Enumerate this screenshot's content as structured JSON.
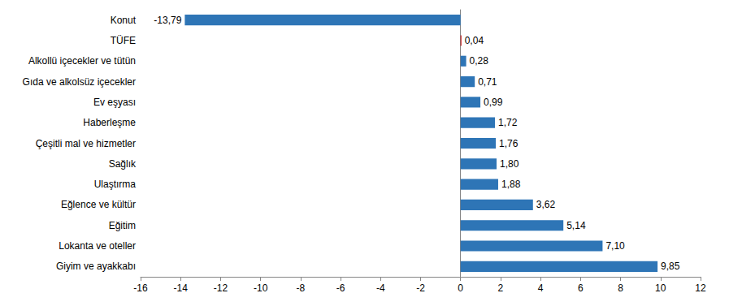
{
  "chart_data": {
    "type": "bar",
    "orientation": "horizontal",
    "categories": [
      "Konut",
      "TÜFE",
      "Alkollü içecekler ve tütün",
      "Gıda ve alkolsüz içecekler",
      "Ev eşyası",
      "Haberleşme",
      "Çeşitli mal ve hizmetler",
      "Sağlık",
      "Ulaştırma",
      "Eğlence ve kültür",
      "Eğitim",
      "Lokanta ve oteller",
      "Giyim ve ayakkabı"
    ],
    "values": [
      -13.79,
      0.04,
      0.28,
      0.71,
      0.99,
      1.72,
      1.76,
      1.8,
      1.88,
      3.62,
      5.14,
      7.1,
      9.85
    ],
    "value_labels": [
      "-13,79",
      "0,04",
      "0,28",
      "0,71",
      "0,99",
      "1,72",
      "1,76",
      "1,80",
      "1,88",
      "3,62",
      "5,14",
      "7,10",
      "9,85"
    ],
    "colors": [
      "#2e75b6",
      "#c00000",
      "#2e75b6",
      "#2e75b6",
      "#2e75b6",
      "#2e75b6",
      "#2e75b6",
      "#2e75b6",
      "#2e75b6",
      "#2e75b6",
      "#2e75b6",
      "#2e75b6",
      "#2e75b6"
    ],
    "xlim": [
      -16,
      12
    ],
    "xticks": [
      -16,
      -14,
      -12,
      -10,
      -8,
      -6,
      -4,
      -2,
      0,
      2,
      4,
      6,
      8,
      10,
      12
    ],
    "grid": false,
    "data_labels": true
  }
}
